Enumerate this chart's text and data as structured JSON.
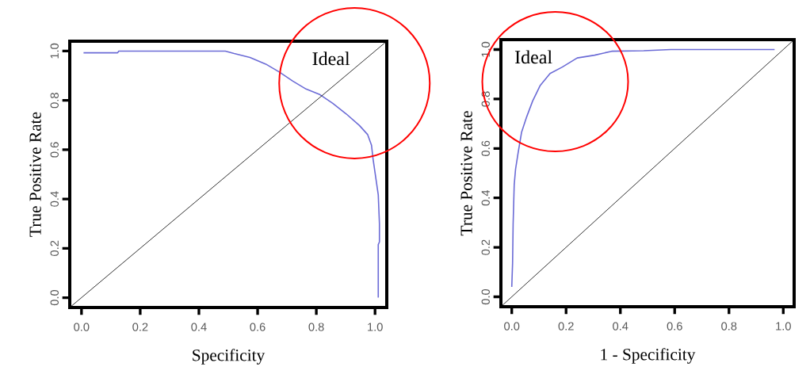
{
  "chart_data": [
    {
      "type": "line",
      "xlabel": "Specificity",
      "ylabel": "True Positive Rate",
      "xlim": [
        -0.04,
        1.04
      ],
      "ylim": [
        -0.04,
        1.04
      ],
      "xticks": [
        {
          "value": 0,
          "label": "0.0"
        },
        {
          "value": 0.2,
          "label": "0.2"
        },
        {
          "value": 0.4,
          "label": "0.4"
        },
        {
          "value": 0.6,
          "label": "0.6"
        },
        {
          "value": 0.8,
          "label": "0.8"
        },
        {
          "value": 1,
          "label": "1.0"
        }
      ],
      "yticks": [
        {
          "value": 0,
          "label": "0.0"
        },
        {
          "value": 0.2,
          "label": "0.2"
        },
        {
          "value": 0.4,
          "label": "0.4"
        },
        {
          "value": 0.6,
          "label": "0.6"
        },
        {
          "value": 0.8,
          "label": "0.8"
        },
        {
          "value": 1,
          "label": "1.0"
        }
      ],
      "annotations": [
        "Ideal"
      ],
      "series": [
        {
          "color": "#6b6bd6",
          "x": [
            0.007,
            0.123,
            0.127,
            0.49,
            0.52,
            0.574,
            0.628,
            0.674,
            0.72,
            0.765,
            0.81,
            0.856,
            0.902,
            0.947,
            0.975,
            0.988,
            0.993,
            1.002,
            1.011,
            1.015,
            1.015,
            1.011,
            1.011
          ],
          "values": [
            0.993,
            0.993,
            1.0,
            1.0,
            0.99,
            0.974,
            0.947,
            0.915,
            0.878,
            0.846,
            0.825,
            0.788,
            0.745,
            0.698,
            0.661,
            0.618,
            0.565,
            0.491,
            0.417,
            0.3,
            0.226,
            0.215,
            0.0
          ]
        },
        {
          "color": "#000000",
          "x": [
            -0.04,
            1.04
          ],
          "values": [
            -0.04,
            1.04
          ]
        }
      ]
    },
    {
      "type": "line",
      "xlabel": "1 - Specificity",
      "ylabel": "True Positive Rate",
      "xlim": [
        -0.04,
        1.04
      ],
      "ylim": [
        -0.04,
        1.04
      ],
      "xticks": [
        {
          "value": 0,
          "label": "0.0"
        },
        {
          "value": 0.2,
          "label": "0.2"
        },
        {
          "value": 0.4,
          "label": "0.4"
        },
        {
          "value": 0.6,
          "label": "0.6"
        },
        {
          "value": 0.8,
          "label": "0.8"
        },
        {
          "value": 1,
          "label": "1.0"
        }
      ],
      "yticks": [
        {
          "value": 0,
          "label": "0.0"
        },
        {
          "value": 0.2,
          "label": "0.2"
        },
        {
          "value": 0.4,
          "label": "0.4"
        },
        {
          "value": 0.6,
          "label": "0.6"
        },
        {
          "value": 0.8,
          "label": "0.8"
        },
        {
          "value": 1,
          "label": "1.0"
        }
      ],
      "annotations": [
        "Ideal"
      ],
      "series": [
        {
          "color": "#6b6bd6",
          "x": [
            0,
            0.003,
            0.005,
            0.009,
            0.014,
            0.023,
            0.036,
            0.055,
            0.077,
            0.105,
            0.141,
            0.186,
            0.241,
            0.305,
            0.368,
            0.486,
            0.586,
            0.968
          ],
          "values": [
            0.04,
            0.135,
            0.294,
            0.453,
            0.516,
            0.58,
            0.665,
            0.728,
            0.792,
            0.855,
            0.903,
            0.929,
            0.966,
            0.977,
            0.993,
            0.995,
            1.0,
            1.0
          ]
        },
        {
          "color": "#000000",
          "x": [
            -0.04,
            1.04
          ],
          "values": [
            -0.04,
            1.04
          ]
        }
      ]
    }
  ]
}
